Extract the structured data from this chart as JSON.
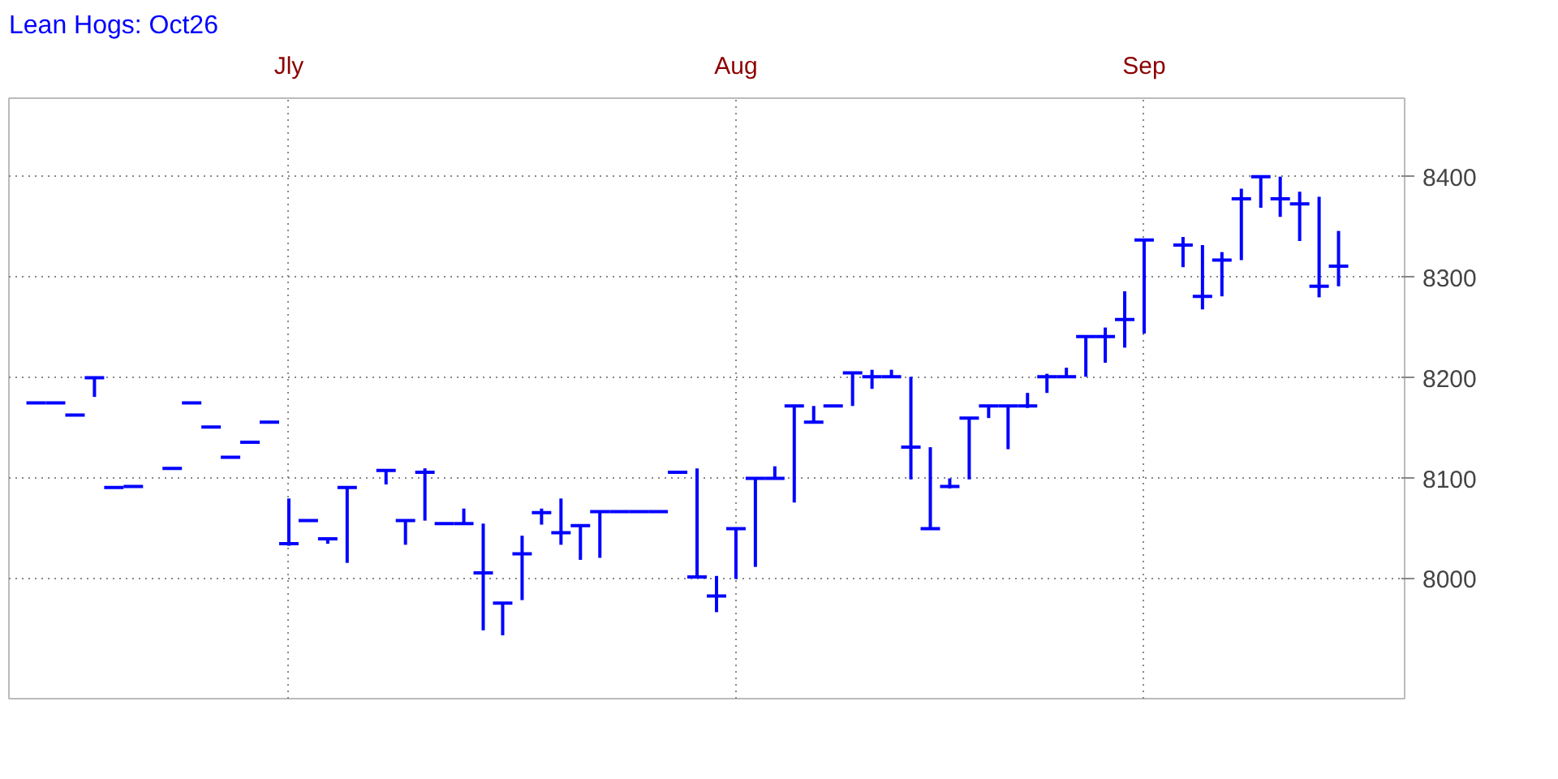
{
  "chart_data": {
    "type": "candlestick",
    "title": "Lean Hogs: Oct26",
    "categories": [
      null,
      null,
      null,
      null,
      null,
      null,
      null,
      null,
      null,
      null,
      null,
      null,
      null,
      "Jly",
      null,
      null,
      null,
      null,
      null,
      null,
      null,
      null,
      null,
      null,
      null,
      null,
      null,
      null,
      null,
      null,
      null,
      null,
      null,
      null,
      null,
      null,
      "Aug",
      null,
      null,
      null,
      null,
      null,
      null,
      null,
      null,
      null,
      null,
      null,
      null,
      null,
      null,
      null,
      null,
      null,
      null,
      null,
      null,
      "Sep",
      null,
      null,
      null,
      null,
      null,
      null,
      null,
      null,
      null,
      null
    ],
    "ohlc": [
      [
        8175,
        8175,
        8175,
        8175
      ],
      [
        8175,
        8175,
        8175,
        8175
      ],
      [
        8163,
        8163,
        8163,
        8163
      ],
      [
        8200,
        8200,
        8181,
        8200
      ],
      [
        8091,
        8091,
        8091,
        8091
      ],
      [
        8092,
        8092,
        8092,
        8092
      ],
      null,
      [
        8110,
        8110,
        8110,
        8110
      ],
      [
        8175,
        8175,
        8175,
        8175
      ],
      [
        8151,
        8151,
        8151,
        8151
      ],
      [
        8121,
        8121,
        8121,
        8121
      ],
      [
        8136,
        8136,
        8136,
        8136
      ],
      [
        8156,
        8156,
        8156,
        8156
      ],
      [
        8035,
        8080,
        8033,
        8035
      ],
      [
        8058,
        8058,
        8058,
        8058
      ],
      [
        8040,
        8040,
        8035,
        8040
      ],
      [
        8091,
        8091,
        8016,
        8091
      ],
      null,
      [
        8108,
        8108,
        8094,
        8108
      ],
      [
        8058,
        8058,
        8034,
        8058
      ],
      [
        8106,
        8110,
        8058,
        8106
      ],
      [
        8055,
        8055,
        8055,
        8055
      ],
      [
        8055,
        8070,
        8055,
        8055
      ],
      [
        8006,
        8055,
        7949,
        8006
      ],
      [
        7976,
        7976,
        7944,
        7976
      ],
      [
        8025,
        8043,
        7979,
        8025
      ],
      [
        8066,
        8070,
        8054,
        8066
      ],
      [
        8046,
        8080,
        8034,
        8046
      ],
      [
        8053,
        8053,
        8019,
        8053
      ],
      [
        8067,
        8067,
        8021,
        8067
      ],
      [
        8067,
        8067,
        8067,
        8067
      ],
      [
        8067,
        8067,
        8067,
        8067
      ],
      [
        8067,
        8067,
        8067,
        8067
      ],
      [
        8106,
        8106,
        8106,
        8106
      ],
      [
        8002,
        8110,
        8002,
        8002
      ],
      [
        7983,
        8003,
        7967,
        7983
      ],
      [
        8050,
        8050,
        8000,
        8050
      ],
      [
        8100,
        8100,
        8012,
        8100
      ],
      [
        8100,
        8112,
        8100,
        8100
      ],
      [
        8172,
        8172,
        8076,
        8172
      ],
      [
        8156,
        8172,
        8156,
        8156
      ],
      [
        8172,
        8172,
        8172,
        8172
      ],
      [
        8205,
        8205,
        8172,
        8205
      ],
      [
        8201,
        8208,
        8189,
        8201
      ],
      [
        8201,
        8208,
        8201,
        8201
      ],
      [
        8131,
        8201,
        8099,
        8131
      ],
      [
        8050,
        8131,
        8050,
        8050
      ],
      [
        8092,
        8100,
        8090,
        8092
      ],
      [
        8160,
        8160,
        8099,
        8160
      ],
      [
        8172,
        8172,
        8160,
        8172
      ],
      [
        8172,
        8172,
        8129,
        8172
      ],
      [
        8172,
        8185,
        8170,
        8172
      ],
      [
        8201,
        8204,
        8185,
        8201
      ],
      [
        8201,
        8210,
        8201,
        8201
      ],
      [
        8241,
        8242,
        8201,
        8241
      ],
      [
        8241,
        8250,
        8215,
        8241
      ],
      [
        8258,
        8286,
        8230,
        8258
      ],
      [
        8337,
        8337,
        8244,
        8337
      ],
      null,
      [
        8332,
        8340,
        8310,
        8332
      ],
      [
        8281,
        8332,
        8268,
        8281
      ],
      [
        8317,
        8325,
        8281,
        8317
      ],
      [
        8378,
        8388,
        8317,
        8378
      ],
      [
        8400,
        8400,
        8369,
        8400
      ],
      [
        8378,
        8400,
        8360,
        8378
      ],
      [
        8373,
        8385,
        8336,
        8373
      ],
      [
        8291,
        8380,
        8280,
        8291
      ],
      [
        8311,
        8346,
        8291,
        8311
      ]
    ],
    "color": "#0000ff",
    "ylim": [
      7881,
      8478
    ],
    "yticks": [
      8000,
      8100,
      8200,
      8300,
      8400
    ],
    "grid": true
  }
}
